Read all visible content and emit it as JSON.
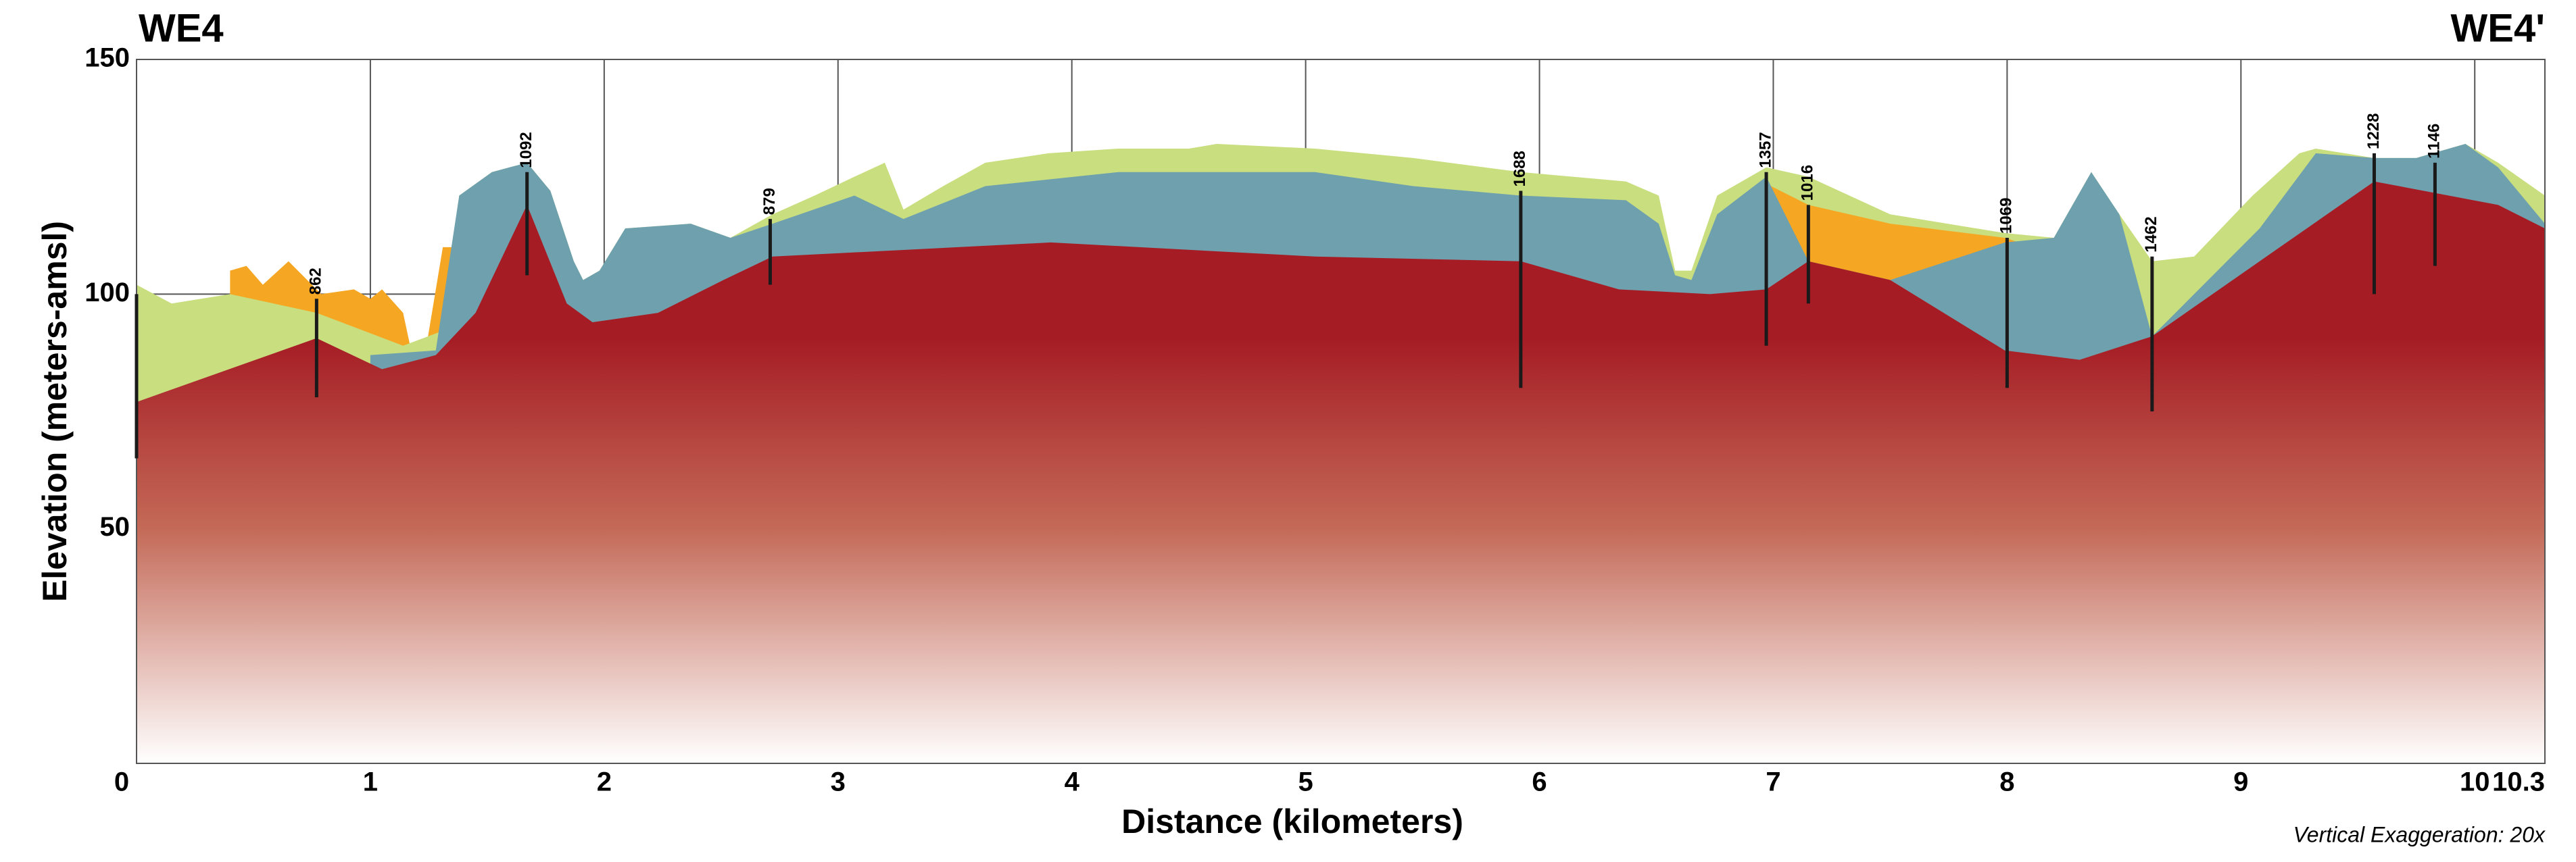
{
  "chart_data": {
    "type": "cross-section",
    "title": "WE4",
    "title_right": "WE4'",
    "xlabel": "Distance (kilometers)",
    "ylabel": "Elevation (meters-amsl)",
    "note": "Vertical Exaggeration: 20x",
    "xlim": [
      0,
      10.3
    ],
    "ylim": [
      0,
      150
    ],
    "xticks": [
      0,
      1,
      2,
      3,
      4,
      5,
      6,
      7,
      8,
      9,
      10,
      10.3
    ],
    "yticks": [
      50,
      100,
      150
    ],
    "grid": true,
    "layers": [
      {
        "color": "#f5a623",
        "x": [
          0.4,
          0.47,
          0.54,
          0.65,
          0.79,
          0.93,
          1.0,
          1.05,
          1.14,
          1.17,
          1.24,
          1.31,
          1.36
        ],
        "values": [
          105,
          106,
          102,
          107,
          100,
          101,
          99,
          101,
          96,
          89,
          89,
          110,
          110
        ]
      },
      {
        "color": "#c9de7f",
        "x": [
          0,
          0.15,
          0.4,
          0.77,
          1.14,
          1.3,
          1.38,
          1.52,
          1.67,
          1.77,
          1.87,
          1.91,
          1.98,
          2.09,
          2.37,
          2.54,
          2.72,
          2.9,
          3.07,
          3.2,
          3.28,
          3.45,
          3.63,
          3.9,
          4.2,
          4.5,
          4.62,
          5.04,
          5.46,
          5.92,
          6.37,
          6.51,
          6.58,
          6.65,
          6.76,
          6.97,
          7.15,
          7.5,
          7.99,
          8.2,
          8.36,
          8.48,
          8.62,
          8.8,
          9.05,
          9.25,
          9.32,
          9.57,
          9.75,
          9.96,
          10.1,
          10.3
        ],
        "values": [
          102,
          98,
          100,
          96,
          89,
          92,
          121,
          126,
          128,
          122,
          107,
          103,
          105,
          114,
          115,
          112,
          117,
          121,
          125,
          128,
          118,
          123,
          128,
          130,
          131,
          131,
          132,
          131,
          129,
          126,
          124,
          121,
          105,
          105,
          121,
          127,
          125,
          117,
          113,
          112,
          126,
          117,
          107,
          108,
          121,
          130,
          131,
          129,
          129,
          132,
          128,
          121
        ]
      },
      {
        "color": "#f5a623",
        "x": [
          6.99,
          7.15,
          7.5,
          7.99,
          8.05
        ],
        "values": [
          123,
          119,
          115,
          112,
          111
        ]
      },
      {
        "color": "#6fa0ad",
        "x": [
          1.0,
          1.28,
          1.38,
          1.52,
          1.67,
          1.77,
          1.87,
          1.91,
          1.98,
          2.09,
          2.37,
          2.54,
          2.72,
          3.07,
          3.28,
          3.63,
          4.2,
          5.04,
          5.46,
          5.92,
          6.37,
          6.51,
          6.58,
          6.65,
          6.76,
          6.97,
          7.15,
          7.5,
          7.99,
          8.2,
          8.36,
          8.48,
          8.62,
          9.08,
          9.32,
          9.57,
          9.75,
          9.96,
          10.1,
          10.3
        ],
        "values": [
          87,
          88,
          121,
          126,
          128,
          122,
          107,
          103,
          105,
          114,
          115,
          112,
          115,
          121,
          116,
          123,
          126,
          126,
          123,
          121,
          120,
          115,
          104,
          103,
          117,
          125,
          107,
          103,
          111,
          112,
          126,
          117,
          91,
          114,
          130,
          129,
          129,
          132,
          127,
          115
        ]
      },
      {
        "color": "#a51c24",
        "x": [
          0,
          0.77,
          1.05,
          1.28,
          1.45,
          1.67,
          1.84,
          1.95,
          2.23,
          2.51,
          2.72,
          3.91,
          5.04,
          5.92,
          6.34,
          6.73,
          6.97,
          7.15,
          7.5,
          7.99,
          8.31,
          8.62,
          9.08,
          9.57,
          10.1,
          10.3
        ],
        "values": [
          77,
          90.6,
          84,
          87,
          96,
          119,
          98,
          94,
          96,
          103,
          108,
          111,
          108,
          107,
          101,
          100,
          101,
          107,
          103,
          88,
          86,
          91,
          107,
          124,
          119,
          114
        ]
      }
    ],
    "wells": [
      {
        "label": null,
        "x": 0,
        "top": 100,
        "bottom": 65
      },
      {
        "label": "862",
        "x": 0.77,
        "top": 99,
        "bottom": 78
      },
      {
        "label": "1092",
        "x": 1.67,
        "top": 126,
        "bottom": 104
      },
      {
        "label": "879",
        "x": 2.71,
        "top": 116,
        "bottom": 102
      },
      {
        "label": "1688",
        "x": 5.92,
        "top": 122,
        "bottom": 80
      },
      {
        "label": "1357",
        "x": 6.97,
        "top": 126,
        "bottom": 89
      },
      {
        "label": "1016",
        "x": 7.15,
        "top": 119,
        "bottom": 98
      },
      {
        "label": "1069",
        "x": 8.0,
        "top": 112,
        "bottom": 80
      },
      {
        "label": "1462",
        "x": 8.62,
        "top": 108,
        "bottom": 75
      },
      {
        "label": "1228",
        "x": 9.57,
        "top": 130,
        "bottom": 100
      },
      {
        "label": "1146",
        "x": 9.83,
        "top": 128,
        "bottom": 106
      }
    ]
  }
}
